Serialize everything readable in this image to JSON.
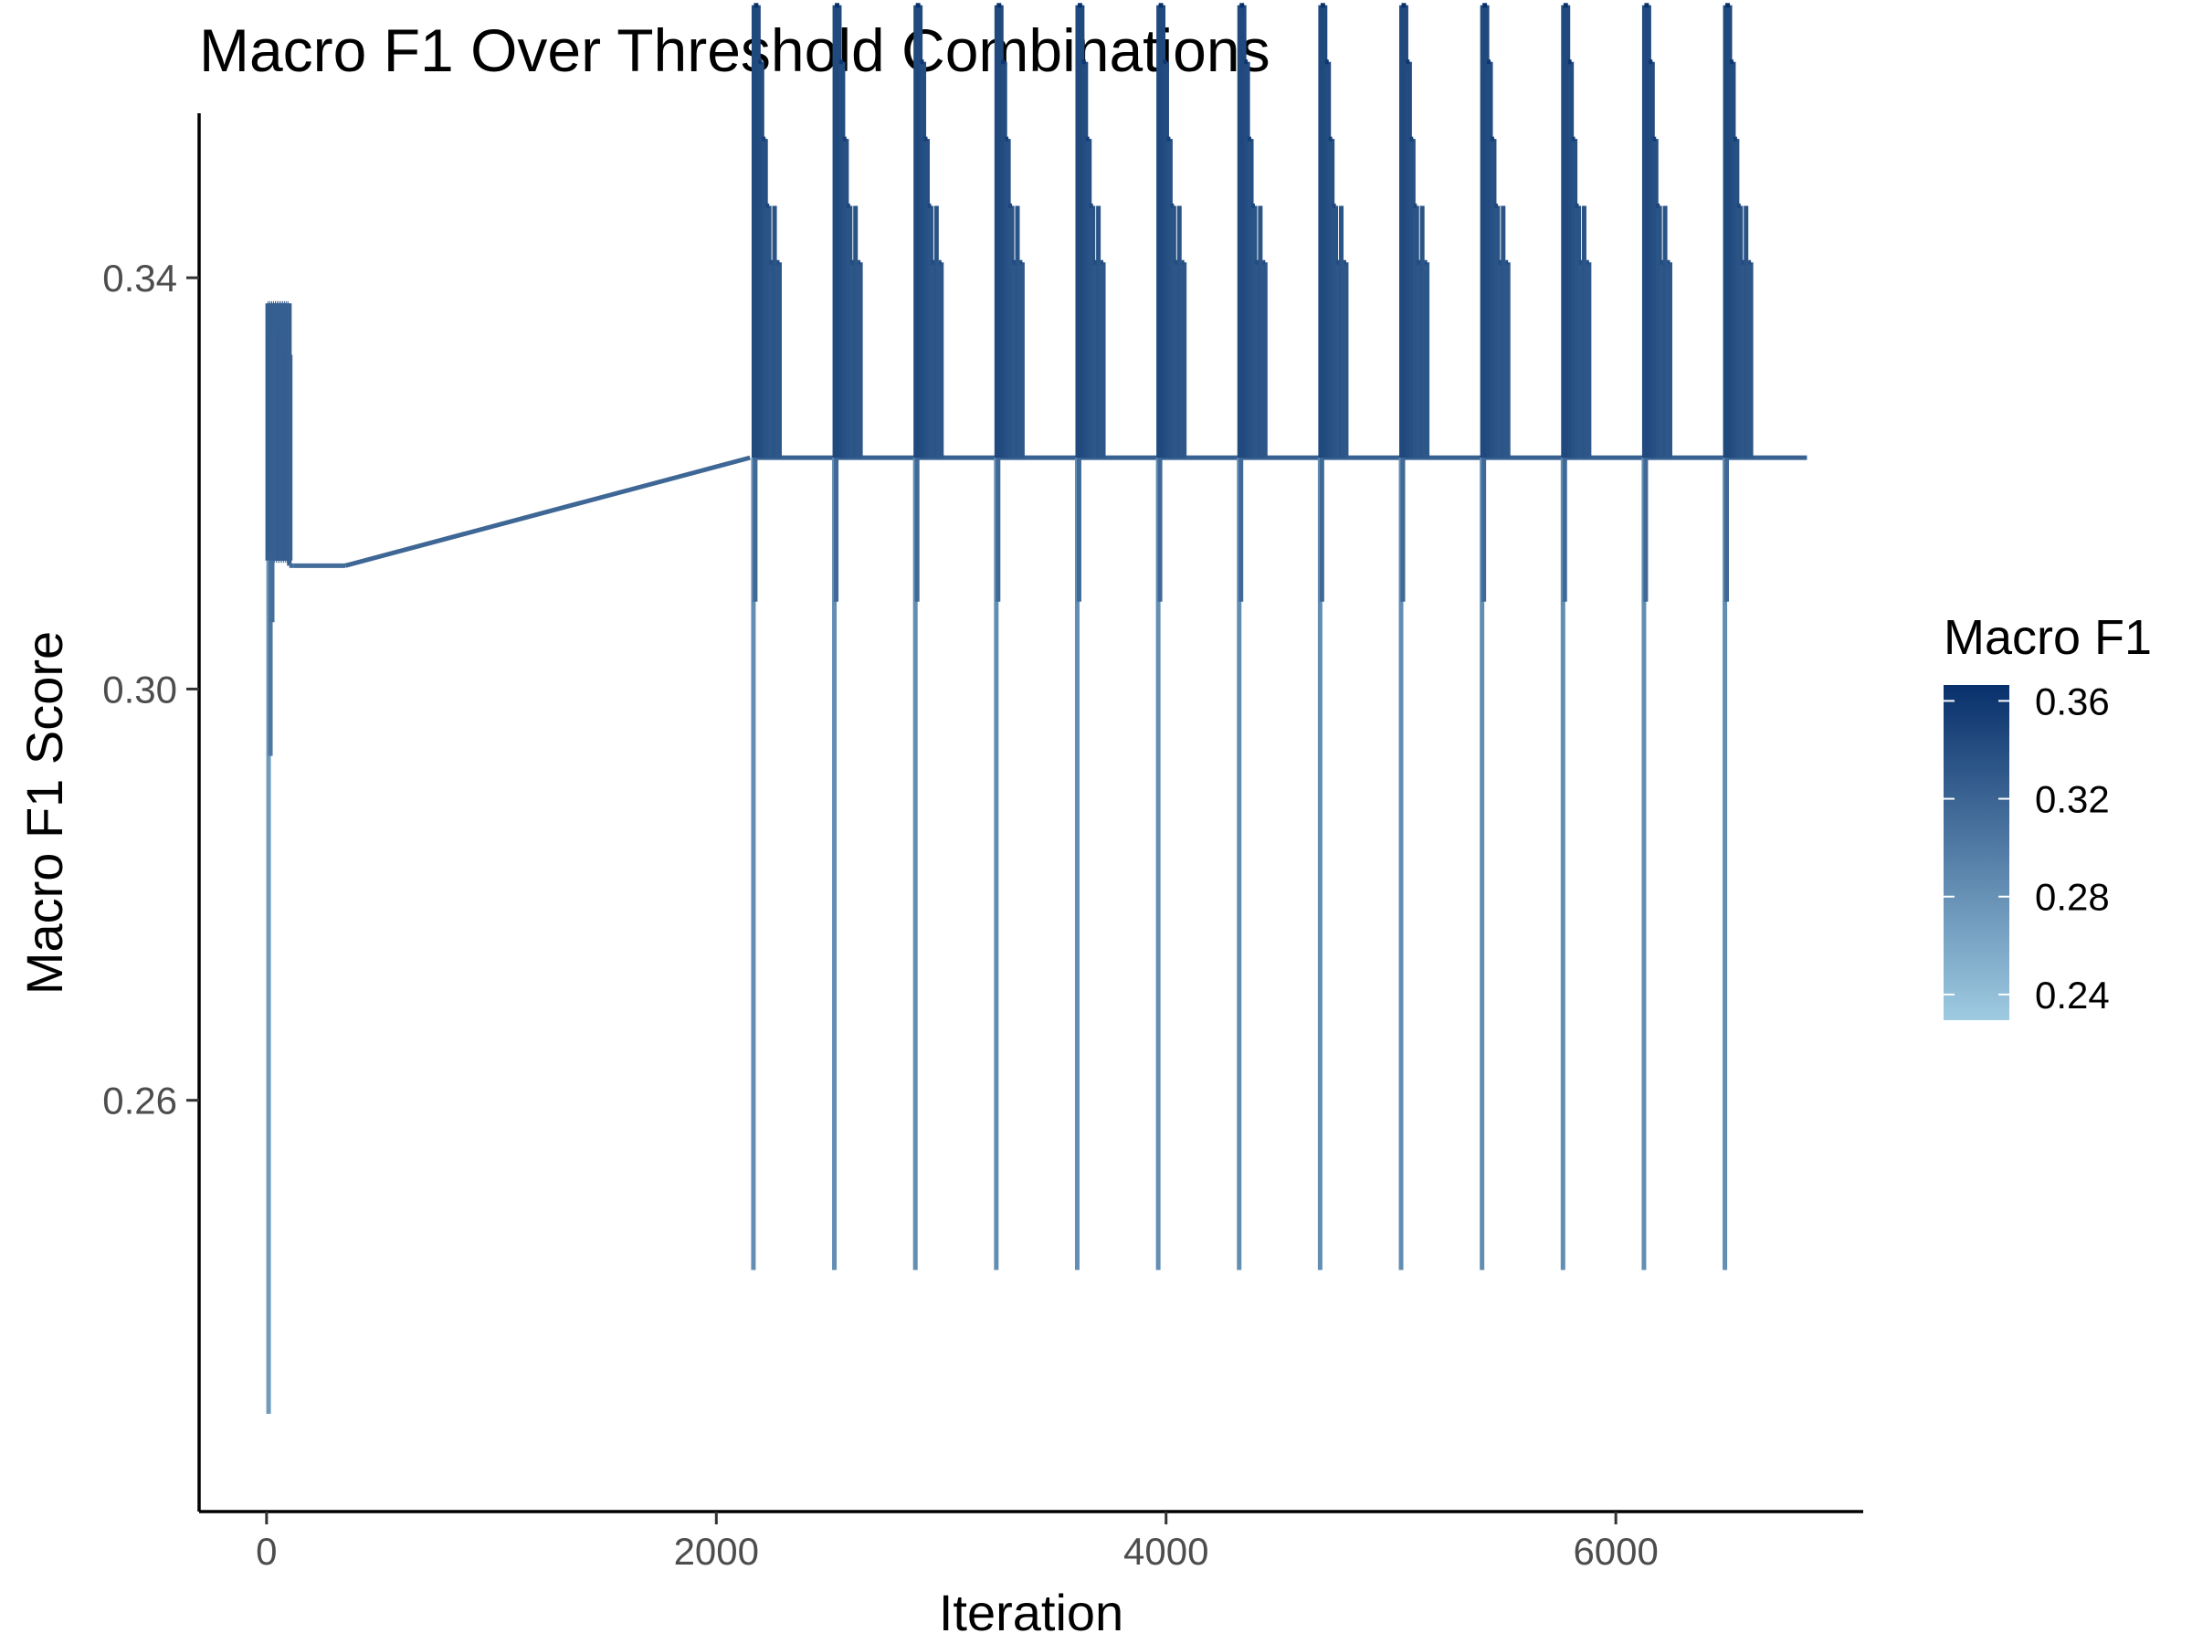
{
  "chart_data": {
    "type": "line",
    "title": "Macro F1 Over Threshold Combinations",
    "xlabel": "Iteration",
    "ylabel": "Macro F1 Score",
    "xlim": [
      -300,
      7100
    ],
    "ylim": [
      0.22,
      0.356
    ],
    "x_ticks": [
      0,
      2000,
      4000,
      6000
    ],
    "x_tick_labels": [
      "0",
      "2000",
      "4000",
      "6000"
    ],
    "y_ticks": [
      0.26,
      0.3,
      0.34
    ],
    "y_tick_labels": [
      "0.26",
      "0.30",
      "0.34"
    ],
    "grid": false,
    "legend": {
      "title": "Macro F1",
      "placement": "right",
      "min": 0.2295,
      "max": 0.3665,
      "ticks": [
        0.24,
        0.28,
        0.32,
        0.36
      ],
      "tick_labels": [
        "0.24",
        "0.28",
        "0.32",
        "0.36"
      ],
      "color_low": "#9ecae1",
      "color_high": "#08306b"
    },
    "highlight_color": "#FFD700",
    "series": [
      {
        "note": "main",
        "segments": {
          "early_block": {
            "x_start": 5,
            "x_end": 120,
            "peak": 0.3375,
            "low": 0.3125,
            "deep_min": 0.2295,
            "rest": 0.312
          },
          "bridge": [
            {
              "x": 120,
              "y": 0.312
            },
            {
              "x": 350,
              "y": 0.312
            },
            {
              "x": 2150,
              "y": 0.3225
            }
          ],
          "baseline": 0.3225,
          "baseline_end_x": 6850
        },
        "cycles": {
          "start_x": [
            2165,
            2525,
            2885,
            3245,
            3605,
            3965,
            4325,
            4685,
            5045,
            5405,
            5765,
            6125,
            6485
          ],
          "cycle_width": 130,
          "peak": 0.3665,
          "mid_levels": [
            0.361,
            0.3535,
            0.347,
            0.3415
          ],
          "dip_mid": 0.3085,
          "dip_low": 0.2435,
          "base": 0.3225
        },
        "best_points": {
          "x": [
            2217,
            2577,
            2937,
            3297,
            3657,
            4017,
            4377,
            4737,
            5097,
            5457,
            5817,
            6177,
            6537
          ],
          "y": 0.3695,
          "marker": "diamond"
        }
      }
    ]
  }
}
